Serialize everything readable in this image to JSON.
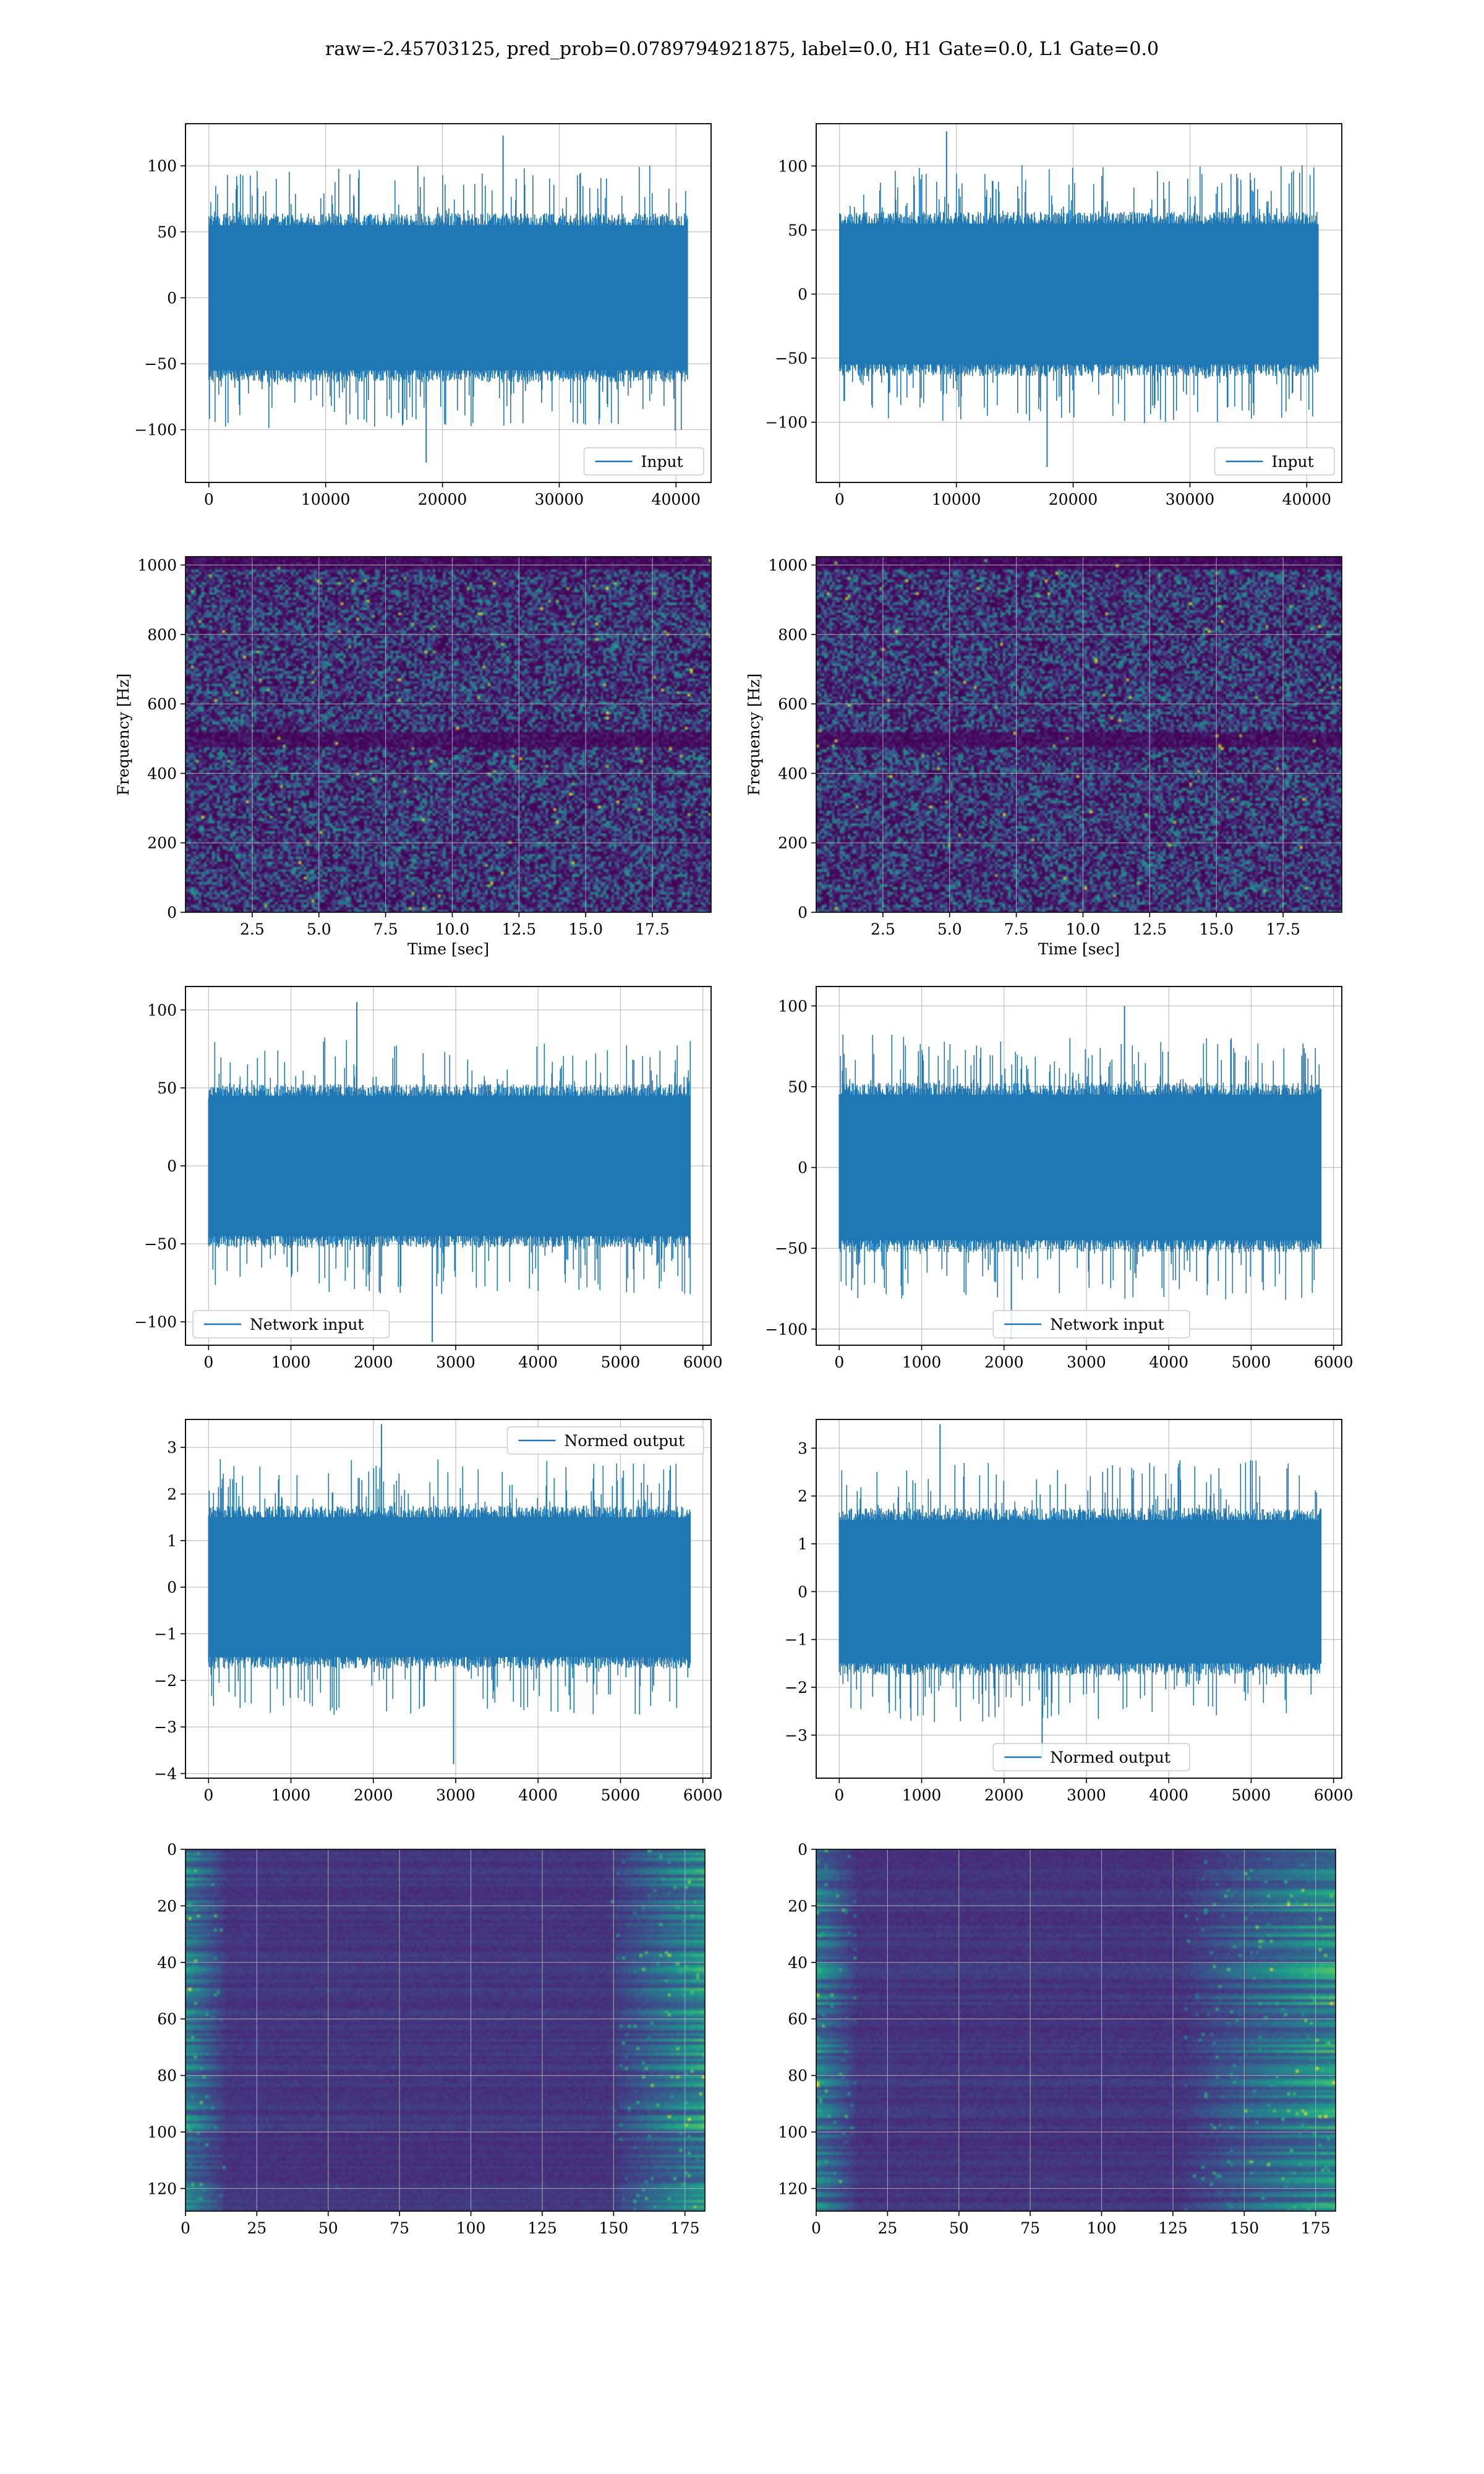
{
  "figure_title": "raw=-2.45703125, pred_prob=0.0789794921875, label=0.0, H1 Gate=0.0, L1 Gate=0.0",
  "colors": {
    "series": "#1f77b4",
    "grid": "#b0b0b0",
    "spine": "#000000"
  },
  "chart_data": [
    {
      "id": "r1c1",
      "type": "line",
      "series": [
        {
          "name": "Input",
          "n_samples": 40960
        }
      ],
      "xlim": [
        -2000,
        43000
      ],
      "ylim": [
        -140,
        132
      ],
      "xticks": [
        0,
        10000,
        20000,
        30000,
        40000
      ],
      "yticks": [
        -100,
        -50,
        0,
        50,
        100
      ],
      "amp": {
        "core": 55,
        "peak_high": 123,
        "peak_low": -125
      },
      "legend": "lower right",
      "grid": true
    },
    {
      "id": "r1c2",
      "type": "line",
      "series": [
        {
          "name": "Input",
          "n_samples": 40960
        }
      ],
      "xlim": [
        -2000,
        43000
      ],
      "ylim": [
        -147,
        133
      ],
      "xticks": [
        0,
        10000,
        20000,
        30000,
        40000
      ],
      "yticks": [
        -100,
        -50,
        0,
        50,
        100
      ],
      "amp": {
        "core": 55,
        "peak_high": 127,
        "peak_low": -135
      },
      "legend": "lower right",
      "grid": true
    },
    {
      "id": "r2c1",
      "type": "heatmap",
      "colormap": "viridis",
      "xlim": [
        0,
        19.7
      ],
      "ylim": [
        0,
        1024
      ],
      "xticks": [
        2.5,
        5.0,
        7.5,
        10.0,
        12.5,
        15.0,
        17.5
      ],
      "yticks": [
        0,
        200,
        400,
        600,
        800,
        1000
      ],
      "xlabel": "Time [sec]",
      "ylabel": "Frequency [Hz]",
      "grid": true
    },
    {
      "id": "r2c2",
      "type": "heatmap",
      "colormap": "viridis",
      "xlim": [
        0,
        19.7
      ],
      "ylim": [
        0,
        1024
      ],
      "xticks": [
        2.5,
        5.0,
        7.5,
        10.0,
        12.5,
        15.0,
        17.5
      ],
      "yticks": [
        0,
        200,
        400,
        600,
        800,
        1000
      ],
      "xlabel": "Time [sec]",
      "ylabel": "Frequency [Hz]",
      "grid": true
    },
    {
      "id": "r3c1",
      "type": "line",
      "series": [
        {
          "name": "Network input",
          "n_samples": 5850
        }
      ],
      "xlim": [
        -280,
        6100
      ],
      "ylim": [
        -115,
        115
      ],
      "xticks": [
        0,
        1000,
        2000,
        3000,
        4000,
        5000,
        6000
      ],
      "yticks": [
        -100,
        -50,
        0,
        50,
        100
      ],
      "amp": {
        "core": 45,
        "peak_high": 105,
        "peak_low": -113
      },
      "legend": "lower left",
      "grid": true
    },
    {
      "id": "r3c2",
      "type": "line",
      "series": [
        {
          "name": "Network input",
          "n_samples": 5850
        }
      ],
      "xlim": [
        -280,
        6100
      ],
      "ylim": [
        -110,
        112
      ],
      "xticks": [
        0,
        1000,
        2000,
        3000,
        4000,
        5000,
        6000
      ],
      "yticks": [
        -100,
        -50,
        0,
        50,
        100
      ],
      "amp": {
        "core": 45,
        "peak_high": 100,
        "peak_low": -106
      },
      "legend": "lower center",
      "grid": true
    },
    {
      "id": "r4c1",
      "type": "line",
      "series": [
        {
          "name": "Normed output",
          "n_samples": 5850
        }
      ],
      "xlim": [
        -280,
        6100
      ],
      "ylim": [
        -4.1,
        3.6
      ],
      "xticks": [
        0,
        1000,
        2000,
        3000,
        4000,
        5000,
        6000
      ],
      "yticks": [
        -4,
        -3,
        -2,
        -1,
        0,
        1,
        2,
        3
      ],
      "amp": {
        "core": 1.5,
        "peak_high": 3.5,
        "peak_low": -3.8
      },
      "legend": "upper right",
      "grid": true
    },
    {
      "id": "r4c2",
      "type": "line",
      "series": [
        {
          "name": "Normed output",
          "n_samples": 5850
        }
      ],
      "xlim": [
        -280,
        6100
      ],
      "ylim": [
        -3.9,
        3.6
      ],
      "xticks": [
        0,
        1000,
        2000,
        3000,
        4000,
        5000,
        6000
      ],
      "yticks": [
        -3,
        -2,
        -1,
        0,
        1,
        2,
        3
      ],
      "amp": {
        "core": 1.5,
        "peak_high": 3.5,
        "peak_low": -3.5
      },
      "legend": "lower center",
      "grid": true
    },
    {
      "id": "r5c1",
      "type": "heatmap",
      "colormap": "viridis",
      "xlim": [
        0,
        182
      ],
      "ylim": [
        0,
        128
      ],
      "y_inverted": true,
      "xticks": [
        0,
        25,
        50,
        75,
        100,
        125,
        150,
        175
      ],
      "yticks": [
        0,
        20,
        40,
        60,
        80,
        100,
        120
      ],
      "grid": true
    },
    {
      "id": "r5c2",
      "type": "heatmap",
      "colormap": "viridis",
      "xlim": [
        0,
        182
      ],
      "ylim": [
        0,
        128
      ],
      "y_inverted": true,
      "xticks": [
        0,
        25,
        50,
        75,
        100,
        125,
        150,
        175
      ],
      "yticks": [
        0,
        20,
        40,
        60,
        80,
        100,
        120
      ],
      "grid": true
    }
  ]
}
